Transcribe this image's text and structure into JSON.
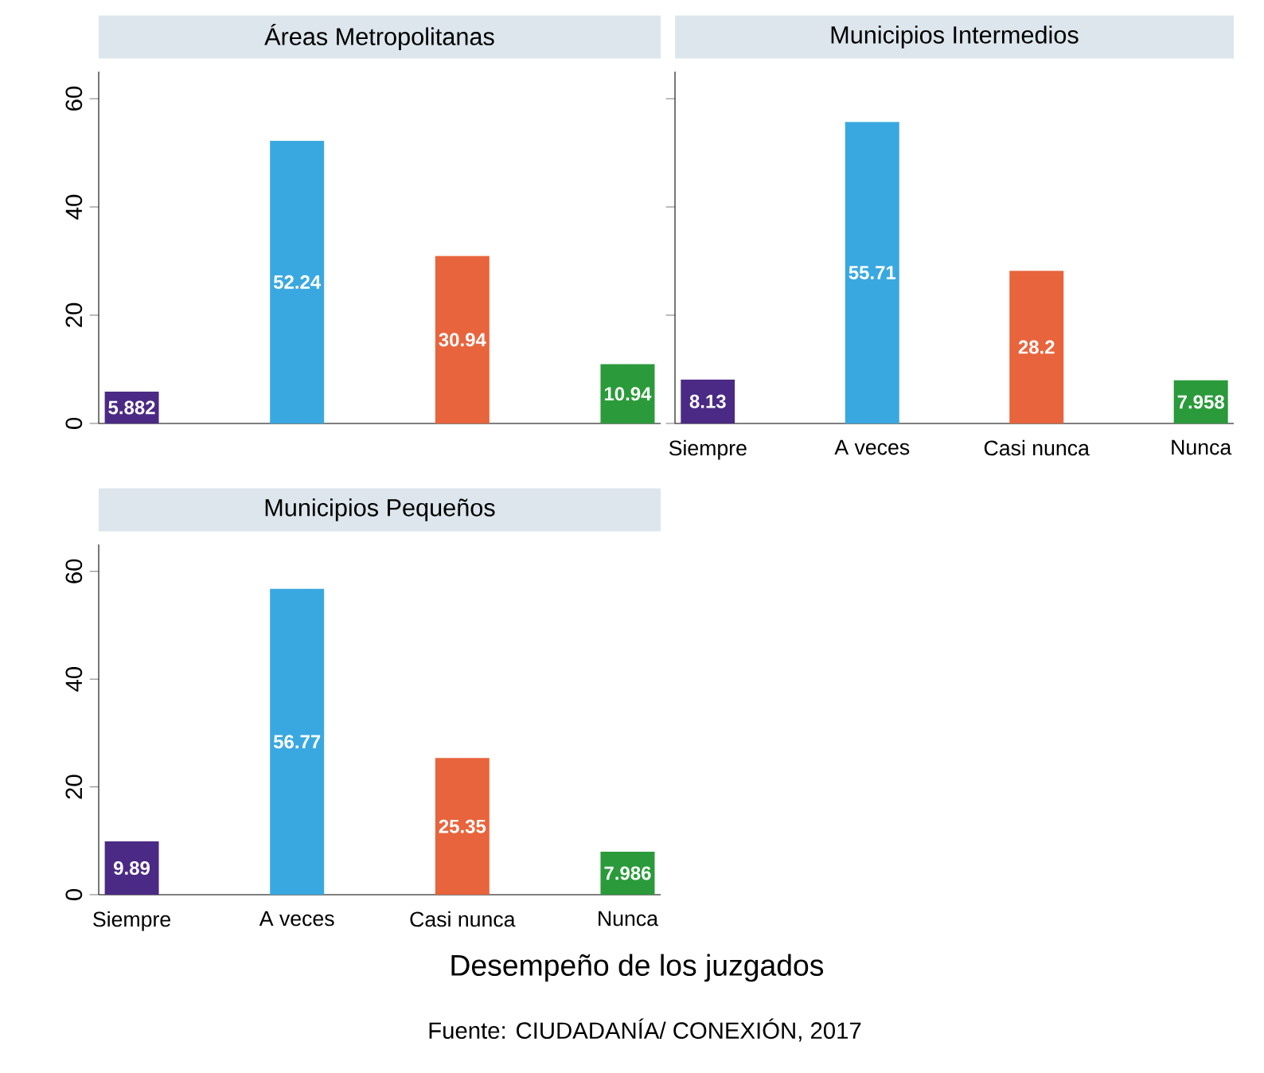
{
  "chart_data": [
    {
      "type": "bar",
      "title": "Áreas Metropolitanas",
      "categories": [
        null,
        null,
        null,
        null
      ],
      "values": [
        5.882,
        52.24,
        30.94,
        10.94
      ],
      "colors": [
        "#4b2a85",
        "#3aa8e0",
        "#e8643c",
        "#2a9a3a"
      ],
      "data_labels": true,
      "ylim": [
        0,
        65
      ],
      "yticks": [
        0,
        20,
        40,
        60
      ],
      "tick_labels": "y"
    },
    {
      "type": "bar",
      "title": "Municipios Intermedios",
      "categories": [
        "Siempre",
        "A veces",
        "Casi nunca",
        "Nunca"
      ],
      "values": [
        8.13,
        55.71,
        28.2,
        7.958
      ],
      "colors": [
        "#4b2a85",
        "#3aa8e0",
        "#e8643c",
        "#2a9a3a"
      ],
      "data_labels": true,
      "ylim": [
        0,
        65
      ],
      "yticks": [
        0,
        20,
        40,
        60
      ],
      "tick_labels": "x"
    },
    {
      "type": "bar",
      "title": "Municipios Pequeños",
      "categories": [
        "Siempre",
        "A veces",
        "Casi nunca",
        "Nunca"
      ],
      "values": [
        9.89,
        56.77,
        25.35,
        7.986
      ],
      "colors": [
        "#4b2a85",
        "#3aa8e0",
        "#e8643c",
        "#2a9a3a"
      ],
      "data_labels": true,
      "ylim": [
        0,
        65
      ],
      "yticks": [
        0,
        20,
        40,
        60
      ],
      "xlabel": "Desempeño de los juzgados",
      "annotations": [
        "Fuente: CIUDADANÍA/ CONEXIÓN, 2017"
      ]
    }
  ]
}
